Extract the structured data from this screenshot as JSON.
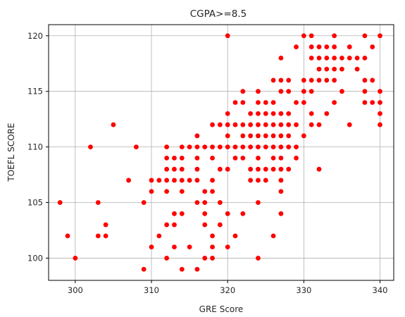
{
  "chart_data": {
    "type": "scatter",
    "title": "CGPA>=8.5",
    "xlabel": "GRE Score",
    "ylabel": "TOEFL SCORE",
    "xlim": [
      296.5,
      341.8
    ],
    "ylim": [
      98,
      121
    ],
    "xticks": [
      300,
      310,
      320,
      330,
      340
    ],
    "yticks": [
      100,
      105,
      110,
      115,
      120
    ],
    "grid": true,
    "marker_color": "#ff0000",
    "points": [
      [
        298,
        105
      ],
      [
        299,
        102
      ],
      [
        300,
        100
      ],
      [
        302,
        110
      ],
      [
        303,
        102
      ],
      [
        303,
        105
      ],
      [
        304,
        102
      ],
      [
        304,
        103
      ],
      [
        305,
        112
      ],
      [
        307,
        107
      ],
      [
        308,
        110
      ],
      [
        309,
        99
      ],
      [
        309,
        105
      ],
      [
        310,
        101
      ],
      [
        310,
        106
      ],
      [
        310,
        107
      ],
      [
        311,
        102
      ],
      [
        311,
        107
      ],
      [
        312,
        100
      ],
      [
        312,
        103
      ],
      [
        312,
        106
      ],
      [
        312,
        107
      ],
      [
        312,
        108
      ],
      [
        312,
        109
      ],
      [
        312,
        110
      ],
      [
        313,
        101
      ],
      [
        313,
        103
      ],
      [
        313,
        104
      ],
      [
        313,
        107
      ],
      [
        313,
        108
      ],
      [
        313,
        109
      ],
      [
        314,
        99
      ],
      [
        314,
        104
      ],
      [
        314,
        106
      ],
      [
        314,
        107
      ],
      [
        314,
        108
      ],
      [
        314,
        109
      ],
      [
        314,
        110
      ],
      [
        315,
        101
      ],
      [
        315,
        107
      ],
      [
        315,
        110
      ],
      [
        316,
        99
      ],
      [
        316,
        105
      ],
      [
        316,
        107
      ],
      [
        316,
        108
      ],
      [
        316,
        109
      ],
      [
        316,
        110
      ],
      [
        316,
        111
      ],
      [
        317,
        100
      ],
      [
        317,
        103
      ],
      [
        317,
        104
      ],
      [
        317,
        105
      ],
      [
        317,
        106
      ],
      [
        317,
        110
      ],
      [
        318,
        100
      ],
      [
        318,
        101
      ],
      [
        318,
        102
      ],
      [
        318,
        106
      ],
      [
        318,
        107
      ],
      [
        318,
        109
      ],
      [
        318,
        110
      ],
      [
        318,
        112
      ],
      [
        319,
        103
      ],
      [
        319,
        105
      ],
      [
        319,
        108
      ],
      [
        319,
        110
      ],
      [
        319,
        112
      ],
      [
        320,
        101
      ],
      [
        320,
        104
      ],
      [
        320,
        108
      ],
      [
        320,
        110
      ],
      [
        320,
        111
      ],
      [
        320,
        112
      ],
      [
        320,
        113
      ],
      [
        320,
        120
      ],
      [
        321,
        102
      ],
      [
        321,
        109
      ],
      [
        321,
        110
      ],
      [
        321,
        112
      ],
      [
        321,
        114
      ],
      [
        322,
        104
      ],
      [
        322,
        109
      ],
      [
        322,
        110
      ],
      [
        322,
        111
      ],
      [
        322,
        112
      ],
      [
        322,
        114
      ],
      [
        322,
        115
      ],
      [
        323,
        107
      ],
      [
        323,
        108
      ],
      [
        323,
        110
      ],
      [
        323,
        111
      ],
      [
        323,
        112
      ],
      [
        323,
        113
      ],
      [
        324,
        100
      ],
      [
        324,
        105
      ],
      [
        324,
        107
      ],
      [
        324,
        108
      ],
      [
        324,
        109
      ],
      [
        324,
        110
      ],
      [
        324,
        111
      ],
      [
        324,
        112
      ],
      [
        324,
        113
      ],
      [
        324,
        114
      ],
      [
        324,
        115
      ],
      [
        325,
        107
      ],
      [
        325,
        108
      ],
      [
        325,
        110
      ],
      [
        325,
        111
      ],
      [
        325,
        112
      ],
      [
        325,
        113
      ],
      [
        325,
        114
      ],
      [
        326,
        102
      ],
      [
        326,
        108
      ],
      [
        326,
        109
      ],
      [
        326,
        110
      ],
      [
        326,
        111
      ],
      [
        326,
        112
      ],
      [
        326,
        113
      ],
      [
        326,
        114
      ],
      [
        326,
        116
      ],
      [
        327,
        104
      ],
      [
        327,
        106
      ],
      [
        327,
        107
      ],
      [
        327,
        108
      ],
      [
        327,
        109
      ],
      [
        327,
        110
      ],
      [
        327,
        111
      ],
      [
        327,
        112
      ],
      [
        327,
        113
      ],
      [
        327,
        115
      ],
      [
        327,
        116
      ],
      [
        327,
        118
      ],
      [
        328,
        108
      ],
      [
        328,
        110
      ],
      [
        328,
        111
      ],
      [
        328,
        112
      ],
      [
        328,
        113
      ],
      [
        328,
        115
      ],
      [
        328,
        116
      ],
      [
        329,
        109
      ],
      [
        329,
        110
      ],
      [
        329,
        112
      ],
      [
        329,
        114
      ],
      [
        329,
        119
      ],
      [
        330,
        111
      ],
      [
        330,
        114
      ],
      [
        330,
        115
      ],
      [
        330,
        116
      ],
      [
        330,
        120
      ],
      [
        331,
        112
      ],
      [
        331,
        113
      ],
      [
        331,
        115
      ],
      [
        331,
        116
      ],
      [
        331,
        118
      ],
      [
        331,
        119
      ],
      [
        331,
        120
      ],
      [
        332,
        108
      ],
      [
        332,
        112
      ],
      [
        332,
        116
      ],
      [
        332,
        117
      ],
      [
        332,
        118
      ],
      [
        332,
        119
      ],
      [
        333,
        113
      ],
      [
        333,
        116
      ],
      [
        333,
        117
      ],
      [
        333,
        118
      ],
      [
        333,
        119
      ],
      [
        334,
        114
      ],
      [
        334,
        116
      ],
      [
        334,
        117
      ],
      [
        334,
        118
      ],
      [
        334,
        119
      ],
      [
        334,
        120
      ],
      [
        335,
        115
      ],
      [
        335,
        117
      ],
      [
        335,
        118
      ],
      [
        336,
        112
      ],
      [
        336,
        118
      ],
      [
        336,
        119
      ],
      [
        337,
        117
      ],
      [
        337,
        118
      ],
      [
        338,
        114
      ],
      [
        338,
        115
      ],
      [
        338,
        116
      ],
      [
        338,
        118
      ],
      [
        338,
        120
      ],
      [
        339,
        114
      ],
      [
        339,
        116
      ],
      [
        339,
        119
      ],
      [
        340,
        112
      ],
      [
        340,
        113
      ],
      [
        340,
        114
      ],
      [
        340,
        115
      ],
      [
        340,
        120
      ]
    ]
  }
}
